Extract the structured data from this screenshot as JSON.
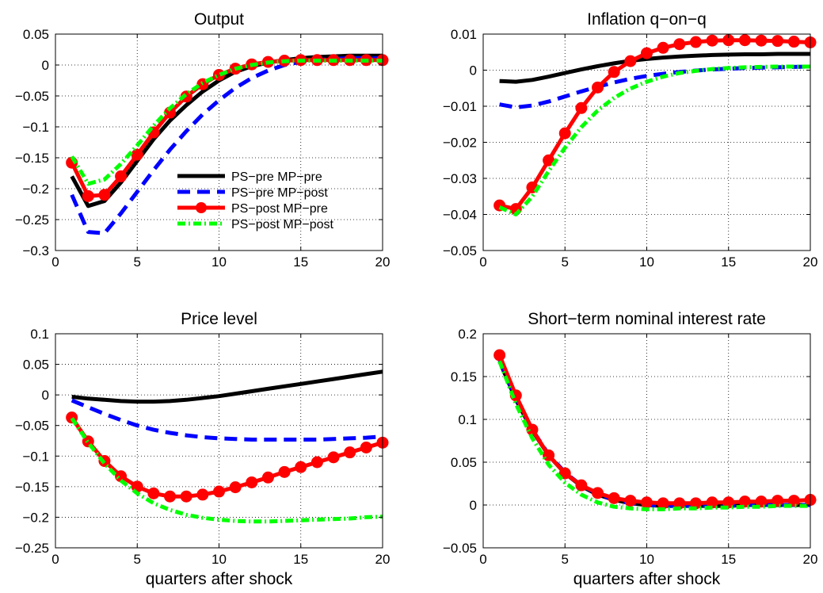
{
  "legend": {
    "panel": 0,
    "entries": [
      {
        "series": 0,
        "label": "PS−pre MP−pre"
      },
      {
        "series": 1,
        "label": "PS−pre MP−post"
      },
      {
        "series": 2,
        "label": "PS−post MP−pre"
      },
      {
        "series": 3,
        "label": "PS−post MP−post"
      }
    ]
  },
  "styles": [
    {
      "color": "#000000",
      "dash": "",
      "marker": false
    },
    {
      "color": "#0000ff",
      "dash": "16,9",
      "marker": false
    },
    {
      "color": "#ff0000",
      "dash": "",
      "marker": true
    },
    {
      "color": "#00ff00",
      "dash": "10,4,2,4",
      "marker": false
    }
  ],
  "chart_data": [
    {
      "type": "line",
      "title": "Output",
      "xlabel": "",
      "ylabel": "",
      "xlim": [
        0,
        20
      ],
      "ylim": [
        -0.3,
        0.05
      ],
      "xticks": [
        0,
        5,
        10,
        15,
        20
      ],
      "xtick_labels": [
        "0",
        "5",
        "10",
        "15",
        "20"
      ],
      "yticks": [
        -0.3,
        -0.25,
        -0.2,
        -0.15,
        -0.1,
        -0.05,
        0,
        0.05
      ],
      "ytick_labels": [
        "−0.3",
        "−0.25",
        "−0.2",
        "−0.15",
        "−0.1",
        "−0.05",
        "0",
        "0.05"
      ],
      "grid": true,
      "x": [
        1,
        2,
        3,
        4,
        5,
        6,
        7,
        8,
        9,
        10,
        11,
        12,
        13,
        14,
        15,
        16,
        17,
        18,
        19,
        20
      ],
      "series": [
        {
          "name": "PS−pre MP−pre",
          "values": [
            -0.18,
            -0.228,
            -0.22,
            -0.19,
            -0.155,
            -0.12,
            -0.09,
            -0.065,
            -0.043,
            -0.025,
            -0.011,
            -0.002,
            0.004,
            0.008,
            0.011,
            0.013,
            0.014,
            0.015,
            0.015,
            0.015
          ]
        },
        {
          "name": "PS−pre MP−post",
          "values": [
            -0.21,
            -0.27,
            -0.272,
            -0.24,
            -0.205,
            -0.17,
            -0.137,
            -0.107,
            -0.08,
            -0.057,
            -0.037,
            -0.021,
            -0.009,
            0.0,
            0.005,
            0.008,
            0.01,
            0.011,
            0.011,
            0.011
          ]
        },
        {
          "name": "PS−post MP−pre",
          "values": [
            -0.158,
            -0.212,
            -0.21,
            -0.18,
            -0.145,
            -0.109,
            -0.077,
            -0.051,
            -0.031,
            -0.016,
            -0.006,
            0.001,
            0.005,
            0.007,
            0.008,
            0.008,
            0.008,
            0.008,
            0.008,
            0.008
          ]
        },
        {
          "name": "PS−post MP−post",
          "values": [
            -0.148,
            -0.192,
            -0.185,
            -0.16,
            -0.13,
            -0.098,
            -0.07,
            -0.047,
            -0.029,
            -0.016,
            -0.006,
            0.0,
            0.004,
            0.006,
            0.007,
            0.007,
            0.007,
            0.007,
            0.007,
            0.007
          ]
        }
      ]
    },
    {
      "type": "line",
      "title": "Inflation q−on−q",
      "xlabel": "",
      "ylabel": "",
      "xlim": [
        0,
        20
      ],
      "ylim": [
        -0.05,
        0.01
      ],
      "xticks": [
        0,
        5,
        10,
        15,
        20
      ],
      "xtick_labels": [
        "0",
        "5",
        "10",
        "15",
        "20"
      ],
      "yticks": [
        -0.05,
        -0.04,
        -0.03,
        -0.02,
        -0.01,
        0,
        0.01
      ],
      "ytick_labels": [
        "−0.05",
        "−0.04",
        "−0.03",
        "−0.02",
        "−0.01",
        "0",
        "0.01"
      ],
      "grid": true,
      "x": [
        1,
        2,
        3,
        4,
        5,
        6,
        7,
        8,
        9,
        10,
        11,
        12,
        13,
        14,
        15,
        16,
        17,
        18,
        19,
        20
      ],
      "series": [
        {
          "name": "PS−pre MP−pre",
          "values": [
            -0.003,
            -0.0032,
            -0.0027,
            -0.0018,
            -0.0008,
            0.0002,
            0.0011,
            0.0019,
            0.0026,
            0.0031,
            0.0035,
            0.0038,
            0.004,
            0.0042,
            0.0043,
            0.0044,
            0.0044,
            0.0045,
            0.0045,
            0.0045
          ]
        },
        {
          "name": "PS−pre MP−post",
          "values": [
            -0.0095,
            -0.0103,
            -0.0098,
            -0.0087,
            -0.0073,
            -0.0059,
            -0.0046,
            -0.0034,
            -0.0024,
            -0.0016,
            -0.001,
            -0.0005,
            -0.0001,
            0.0002,
            0.0004,
            0.0006,
            0.0007,
            0.0008,
            0.0009,
            0.001
          ]
        },
        {
          "name": "PS−post MP−pre",
          "values": [
            -0.0375,
            -0.0385,
            -0.0325,
            -0.025,
            -0.0175,
            -0.0105,
            -0.0048,
            -0.0005,
            0.0025,
            0.0047,
            0.0062,
            0.0072,
            0.0078,
            0.0082,
            0.0083,
            0.0083,
            0.0082,
            0.0081,
            0.0079,
            0.0077
          ]
        },
        {
          "name": "PS−post MP−post",
          "values": [
            -0.038,
            -0.04,
            -0.035,
            -0.028,
            -0.0215,
            -0.0158,
            -0.0112,
            -0.0077,
            -0.0051,
            -0.0032,
            -0.0018,
            -0.0008,
            -0.0002,
            0.0003,
            0.0006,
            0.0008,
            0.0009,
            0.001,
            0.001,
            0.001
          ]
        }
      ]
    },
    {
      "type": "line",
      "title": "Price level",
      "xlabel": "quarters after shock",
      "ylabel": "",
      "xlim": [
        0,
        20
      ],
      "ylim": [
        -0.25,
        0.1
      ],
      "xticks": [
        0,
        5,
        10,
        15,
        20
      ],
      "xtick_labels": [
        "0",
        "5",
        "10",
        "15",
        "20"
      ],
      "yticks": [
        -0.25,
        -0.2,
        -0.15,
        -0.1,
        -0.05,
        0,
        0.05,
        0.1
      ],
      "ytick_labels": [
        "−0.25",
        "−0.2",
        "−0.15",
        "−0.1",
        "−0.05",
        "0",
        "0.05",
        "0.1"
      ],
      "grid": true,
      "x": [
        1,
        2,
        3,
        4,
        5,
        6,
        7,
        8,
        9,
        10,
        11,
        12,
        13,
        14,
        15,
        16,
        17,
        18,
        19,
        20
      ],
      "series": [
        {
          "name": "PS−pre MP−pre",
          "values": [
            -0.003,
            -0.006,
            -0.008,
            -0.01,
            -0.011,
            -0.011,
            -0.01,
            -0.008,
            -0.005,
            -0.002,
            0.002,
            0.006,
            0.01,
            0.014,
            0.018,
            0.022,
            0.026,
            0.03,
            0.034,
            0.038
          ]
        },
        {
          "name": "PS−pre MP−post",
          "values": [
            -0.009,
            -0.02,
            -0.031,
            -0.041,
            -0.05,
            -0.057,
            -0.062,
            -0.066,
            -0.069,
            -0.071,
            -0.072,
            -0.073,
            -0.073,
            -0.073,
            -0.073,
            -0.073,
            -0.072,
            -0.071,
            -0.07,
            -0.068
          ]
        },
        {
          "name": "PS−post MP−pre",
          "values": [
            -0.037,
            -0.076,
            -0.108,
            -0.133,
            -0.15,
            -0.161,
            -0.166,
            -0.166,
            -0.163,
            -0.158,
            -0.151,
            -0.143,
            -0.135,
            -0.126,
            -0.118,
            -0.11,
            -0.102,
            -0.094,
            -0.086,
            -0.078
          ]
        },
        {
          "name": "PS−post MP−post",
          "values": [
            -0.038,
            -0.078,
            -0.112,
            -0.14,
            -0.161,
            -0.177,
            -0.188,
            -0.196,
            -0.201,
            -0.204,
            -0.206,
            -0.207,
            -0.207,
            -0.206,
            -0.205,
            -0.204,
            -0.203,
            -0.202,
            -0.2,
            -0.199
          ]
        }
      ]
    },
    {
      "type": "line",
      "title": "Short−term nominal interest rate",
      "xlabel": "quarters after shock",
      "ylabel": "",
      "xlim": [
        0,
        20
      ],
      "ylim": [
        -0.05,
        0.2
      ],
      "xticks": [
        0,
        5,
        10,
        15,
        20
      ],
      "xtick_labels": [
        "0",
        "5",
        "10",
        "15",
        "20"
      ],
      "yticks": [
        -0.05,
        0,
        0.05,
        0.1,
        0.15,
        0.2
      ],
      "ytick_labels": [
        "−0.05",
        "0",
        "0.05",
        "0.1",
        "0.15",
        "0.2"
      ],
      "grid": true,
      "x": [
        1,
        2,
        3,
        4,
        5,
        6,
        7,
        8,
        9,
        10,
        11,
        12,
        13,
        14,
        15,
        16,
        17,
        18,
        19,
        20
      ],
      "series": [
        {
          "name": "PS−pre MP−pre",
          "values": [
            0.168,
            0.123,
            0.087,
            0.058,
            0.037,
            0.022,
            0.012,
            0.006,
            0.002,
            0.0,
            -0.001,
            -0.001,
            -0.001,
            -0.001,
            -0.001,
            0.0,
            0.0,
            0.0,
            0.0,
            0.0
          ]
        },
        {
          "name": "PS−pre MP−post",
          "values": [
            0.17,
            0.125,
            0.088,
            0.059,
            0.038,
            0.023,
            0.013,
            0.006,
            0.002,
            0.0,
            -0.001,
            -0.001,
            -0.001,
            -0.001,
            -0.001,
            0.0,
            0.0,
            0.0,
            0.0,
            0.0
          ]
        },
        {
          "name": "PS−post MP−pre",
          "values": [
            0.175,
            0.128,
            0.088,
            0.058,
            0.037,
            0.023,
            0.014,
            0.008,
            0.005,
            0.003,
            0.002,
            0.002,
            0.002,
            0.003,
            0.003,
            0.004,
            0.004,
            0.005,
            0.005,
            0.006
          ]
        },
        {
          "name": "PS−post MP−post",
          "values": [
            0.168,
            0.118,
            0.078,
            0.047,
            0.026,
            0.012,
            0.003,
            -0.002,
            -0.004,
            -0.005,
            -0.005,
            -0.004,
            -0.004,
            -0.003,
            -0.003,
            -0.002,
            -0.002,
            -0.001,
            -0.001,
            -0.001
          ]
        }
      ]
    }
  ]
}
